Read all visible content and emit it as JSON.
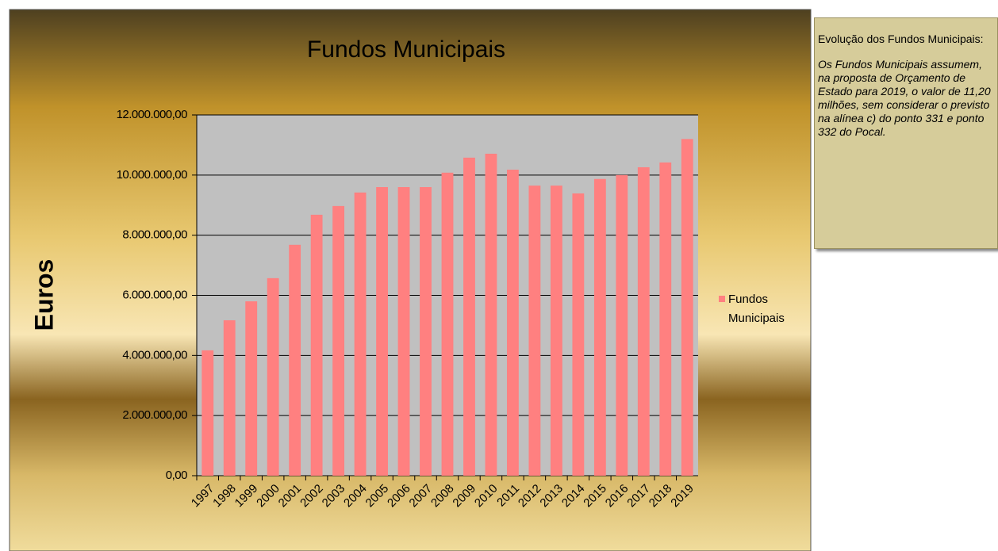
{
  "chart_data": {
    "type": "bar",
    "title": "Fundos Municipais",
    "y_label": "Euros",
    "categories": [
      "1997",
      "1998",
      "1999",
      "2000",
      "2001",
      "2002",
      "2003",
      "2004",
      "2005",
      "2006",
      "2007",
      "2008",
      "2009",
      "2010",
      "2011",
      "2012",
      "2013",
      "2014",
      "2015",
      "2016",
      "2017",
      "2018",
      "2019"
    ],
    "series": [
      {
        "name": "Fundos Municipais",
        "color": "#ff8080",
        "values": [
          4170000,
          5170000,
          5800000,
          6570000,
          7680000,
          8680000,
          8970000,
          9420000,
          9600000,
          9600000,
          9600000,
          10080000,
          10580000,
          10710000,
          10180000,
          9650000,
          9650000,
          9390000,
          9870000,
          10000000,
          10260000,
          10420000,
          11200000
        ]
      }
    ],
    "ylim": [
      0,
      12000000
    ],
    "yticks": [
      {
        "value": 0,
        "label": "0,00"
      },
      {
        "value": 2000000,
        "label": "2.000.000,00"
      },
      {
        "value": 4000000,
        "label": "4.000.000,00"
      },
      {
        "value": 6000000,
        "label": "6.000.000,00"
      },
      {
        "value": 8000000,
        "label": "8.000.000,00"
      },
      {
        "value": 10000000,
        "label": "10.000.000,00"
      },
      {
        "value": 12000000,
        "label": "12.000.000,00"
      }
    ],
    "grid": true,
    "legend": "right"
  },
  "note": {
    "title": "Evolução dos Fundos Municipais:",
    "text": "Os Fundos Municipais assumem, na proposta de Orçamento de Estado para 2019, o valor de 11,20 milhões, sem considerar o previsto na alínea c) do ponto 331 e ponto 332 do Pocal."
  }
}
